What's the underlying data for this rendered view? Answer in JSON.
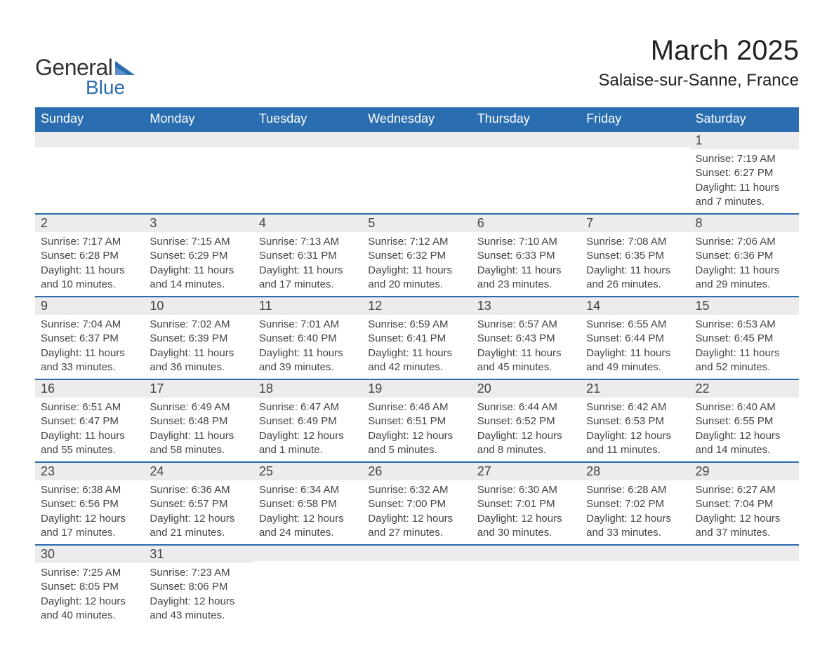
{
  "brand": {
    "name1": "General",
    "name2": "Blue",
    "color1": "#333333",
    "color2": "#2a6db0"
  },
  "title": "March 2025",
  "location": "Salaise-sur-Sanne, France",
  "weekday_header_bg": "#2a6db0",
  "weekday_header_fg": "#ffffff",
  "week_border_color": "#2a6db0",
  "daynum_bg": "#ececec",
  "text_color": "#444444",
  "weekdays": [
    "Sunday",
    "Monday",
    "Tuesday",
    "Wednesday",
    "Thursday",
    "Friday",
    "Saturday"
  ],
  "weeks": [
    [
      {
        "day": "",
        "sunrise": "",
        "sunset": "",
        "daylight": ""
      },
      {
        "day": "",
        "sunrise": "",
        "sunset": "",
        "daylight": ""
      },
      {
        "day": "",
        "sunrise": "",
        "sunset": "",
        "daylight": ""
      },
      {
        "day": "",
        "sunrise": "",
        "sunset": "",
        "daylight": ""
      },
      {
        "day": "",
        "sunrise": "",
        "sunset": "",
        "daylight": ""
      },
      {
        "day": "",
        "sunrise": "",
        "sunset": "",
        "daylight": ""
      },
      {
        "day": "1",
        "sunrise": "Sunrise: 7:19 AM",
        "sunset": "Sunset: 6:27 PM",
        "daylight": "Daylight: 11 hours and 7 minutes."
      }
    ],
    [
      {
        "day": "2",
        "sunrise": "Sunrise: 7:17 AM",
        "sunset": "Sunset: 6:28 PM",
        "daylight": "Daylight: 11 hours and 10 minutes."
      },
      {
        "day": "3",
        "sunrise": "Sunrise: 7:15 AM",
        "sunset": "Sunset: 6:29 PM",
        "daylight": "Daylight: 11 hours and 14 minutes."
      },
      {
        "day": "4",
        "sunrise": "Sunrise: 7:13 AM",
        "sunset": "Sunset: 6:31 PM",
        "daylight": "Daylight: 11 hours and 17 minutes."
      },
      {
        "day": "5",
        "sunrise": "Sunrise: 7:12 AM",
        "sunset": "Sunset: 6:32 PM",
        "daylight": "Daylight: 11 hours and 20 minutes."
      },
      {
        "day": "6",
        "sunrise": "Sunrise: 7:10 AM",
        "sunset": "Sunset: 6:33 PM",
        "daylight": "Daylight: 11 hours and 23 minutes."
      },
      {
        "day": "7",
        "sunrise": "Sunrise: 7:08 AM",
        "sunset": "Sunset: 6:35 PM",
        "daylight": "Daylight: 11 hours and 26 minutes."
      },
      {
        "day": "8",
        "sunrise": "Sunrise: 7:06 AM",
        "sunset": "Sunset: 6:36 PM",
        "daylight": "Daylight: 11 hours and 29 minutes."
      }
    ],
    [
      {
        "day": "9",
        "sunrise": "Sunrise: 7:04 AM",
        "sunset": "Sunset: 6:37 PM",
        "daylight": "Daylight: 11 hours and 33 minutes."
      },
      {
        "day": "10",
        "sunrise": "Sunrise: 7:02 AM",
        "sunset": "Sunset: 6:39 PM",
        "daylight": "Daylight: 11 hours and 36 minutes."
      },
      {
        "day": "11",
        "sunrise": "Sunrise: 7:01 AM",
        "sunset": "Sunset: 6:40 PM",
        "daylight": "Daylight: 11 hours and 39 minutes."
      },
      {
        "day": "12",
        "sunrise": "Sunrise: 6:59 AM",
        "sunset": "Sunset: 6:41 PM",
        "daylight": "Daylight: 11 hours and 42 minutes."
      },
      {
        "day": "13",
        "sunrise": "Sunrise: 6:57 AM",
        "sunset": "Sunset: 6:43 PM",
        "daylight": "Daylight: 11 hours and 45 minutes."
      },
      {
        "day": "14",
        "sunrise": "Sunrise: 6:55 AM",
        "sunset": "Sunset: 6:44 PM",
        "daylight": "Daylight: 11 hours and 49 minutes."
      },
      {
        "day": "15",
        "sunrise": "Sunrise: 6:53 AM",
        "sunset": "Sunset: 6:45 PM",
        "daylight": "Daylight: 11 hours and 52 minutes."
      }
    ],
    [
      {
        "day": "16",
        "sunrise": "Sunrise: 6:51 AM",
        "sunset": "Sunset: 6:47 PM",
        "daylight": "Daylight: 11 hours and 55 minutes."
      },
      {
        "day": "17",
        "sunrise": "Sunrise: 6:49 AM",
        "sunset": "Sunset: 6:48 PM",
        "daylight": "Daylight: 11 hours and 58 minutes."
      },
      {
        "day": "18",
        "sunrise": "Sunrise: 6:47 AM",
        "sunset": "Sunset: 6:49 PM",
        "daylight": "Daylight: 12 hours and 1 minute."
      },
      {
        "day": "19",
        "sunrise": "Sunrise: 6:46 AM",
        "sunset": "Sunset: 6:51 PM",
        "daylight": "Daylight: 12 hours and 5 minutes."
      },
      {
        "day": "20",
        "sunrise": "Sunrise: 6:44 AM",
        "sunset": "Sunset: 6:52 PM",
        "daylight": "Daylight: 12 hours and 8 minutes."
      },
      {
        "day": "21",
        "sunrise": "Sunrise: 6:42 AM",
        "sunset": "Sunset: 6:53 PM",
        "daylight": "Daylight: 12 hours and 11 minutes."
      },
      {
        "day": "22",
        "sunrise": "Sunrise: 6:40 AM",
        "sunset": "Sunset: 6:55 PM",
        "daylight": "Daylight: 12 hours and 14 minutes."
      }
    ],
    [
      {
        "day": "23",
        "sunrise": "Sunrise: 6:38 AM",
        "sunset": "Sunset: 6:56 PM",
        "daylight": "Daylight: 12 hours and 17 minutes."
      },
      {
        "day": "24",
        "sunrise": "Sunrise: 6:36 AM",
        "sunset": "Sunset: 6:57 PM",
        "daylight": "Daylight: 12 hours and 21 minutes."
      },
      {
        "day": "25",
        "sunrise": "Sunrise: 6:34 AM",
        "sunset": "Sunset: 6:58 PM",
        "daylight": "Daylight: 12 hours and 24 minutes."
      },
      {
        "day": "26",
        "sunrise": "Sunrise: 6:32 AM",
        "sunset": "Sunset: 7:00 PM",
        "daylight": "Daylight: 12 hours and 27 minutes."
      },
      {
        "day": "27",
        "sunrise": "Sunrise: 6:30 AM",
        "sunset": "Sunset: 7:01 PM",
        "daylight": "Daylight: 12 hours and 30 minutes."
      },
      {
        "day": "28",
        "sunrise": "Sunrise: 6:28 AM",
        "sunset": "Sunset: 7:02 PM",
        "daylight": "Daylight: 12 hours and 33 minutes."
      },
      {
        "day": "29",
        "sunrise": "Sunrise: 6:27 AM",
        "sunset": "Sunset: 7:04 PM",
        "daylight": "Daylight: 12 hours and 37 minutes."
      }
    ],
    [
      {
        "day": "30",
        "sunrise": "Sunrise: 7:25 AM",
        "sunset": "Sunset: 8:05 PM",
        "daylight": "Daylight: 12 hours and 40 minutes."
      },
      {
        "day": "31",
        "sunrise": "Sunrise: 7:23 AM",
        "sunset": "Sunset: 8:06 PM",
        "daylight": "Daylight: 12 hours and 43 minutes."
      },
      {
        "day": "",
        "sunrise": "",
        "sunset": "",
        "daylight": ""
      },
      {
        "day": "",
        "sunrise": "",
        "sunset": "",
        "daylight": ""
      },
      {
        "day": "",
        "sunrise": "",
        "sunset": "",
        "daylight": ""
      },
      {
        "day": "",
        "sunrise": "",
        "sunset": "",
        "daylight": ""
      },
      {
        "day": "",
        "sunrise": "",
        "sunset": "",
        "daylight": ""
      }
    ]
  ]
}
